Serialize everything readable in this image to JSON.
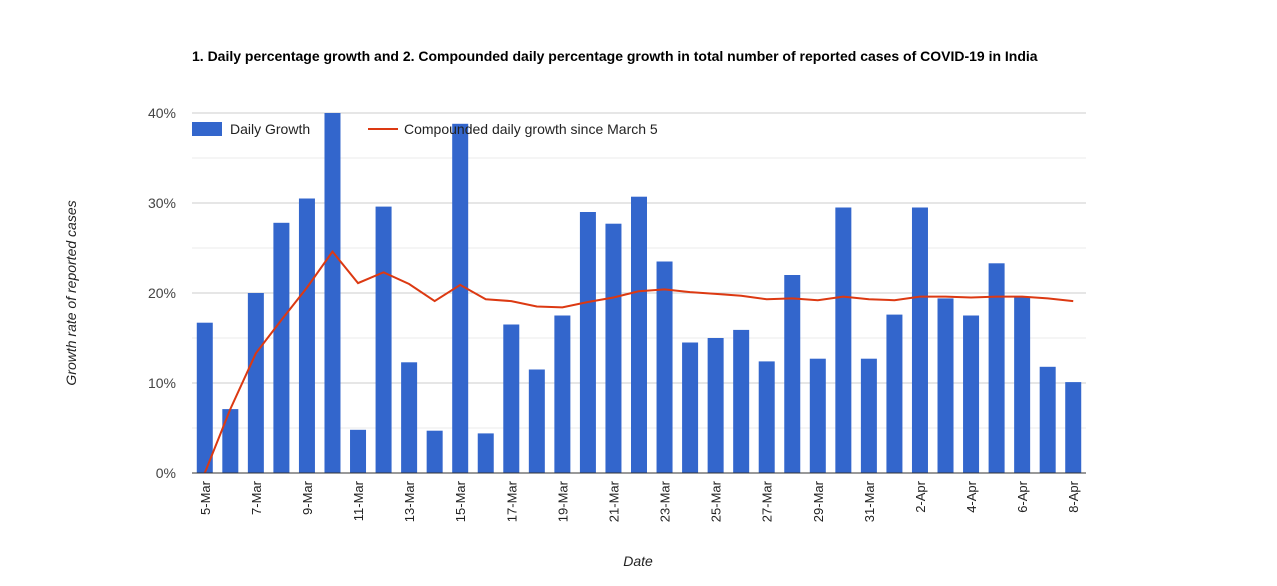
{
  "chart_data": {
    "type": "bar",
    "title": "1. Daily percentage growth and 2. Compounded daily percentage growth in total number of reported cases of COVID-19 in India",
    "xlabel": "Date",
    "ylabel": "Growth rate of reported cases",
    "ylim": [
      0,
      40
    ],
    "y_ticks": [
      "0%",
      "10%",
      "20%",
      "30%",
      "40%"
    ],
    "grid": true,
    "legend_position": "top-left",
    "categories": [
      "5-Mar",
      "6-Mar",
      "7-Mar",
      "8-Mar",
      "9-Mar",
      "10-Mar",
      "11-Mar",
      "12-Mar",
      "13-Mar",
      "14-Mar",
      "15-Mar",
      "16-Mar",
      "17-Mar",
      "18-Mar",
      "19-Mar",
      "20-Mar",
      "21-Mar",
      "22-Mar",
      "23-Mar",
      "24-Mar",
      "25-Mar",
      "26-Mar",
      "27-Mar",
      "28-Mar",
      "29-Mar",
      "30-Mar",
      "31-Mar",
      "1-Apr",
      "2-Apr",
      "3-Apr",
      "4-Apr",
      "5-Apr",
      "6-Apr",
      "7-Apr",
      "8-Apr"
    ],
    "x_tick_labels": [
      "5-Mar",
      "7-Mar",
      "9-Mar",
      "11-Mar",
      "13-Mar",
      "15-Mar",
      "17-Mar",
      "19-Mar",
      "21-Mar",
      "23-Mar",
      "25-Mar",
      "27-Mar",
      "29-Mar",
      "31-Mar",
      "2-Apr",
      "4-Apr",
      "6-Apr",
      "8-Apr"
    ],
    "series": [
      {
        "name": "Daily Growth",
        "type": "bar",
        "color": "#3366cc",
        "values": [
          16.7,
          7.1,
          20.0,
          27.8,
          30.5,
          40.0,
          4.8,
          29.6,
          12.3,
          4.7,
          38.8,
          4.4,
          16.5,
          11.5,
          17.5,
          29.0,
          27.7,
          30.7,
          23.5,
          14.5,
          15.0,
          15.9,
          12.4,
          22.0,
          12.7,
          29.5,
          12.7,
          17.6,
          29.5,
          19.4,
          17.5,
          23.3,
          19.6,
          11.8,
          10.1
        ]
      },
      {
        "name": "Compounded daily growth since March 5",
        "type": "line",
        "color": "#dc3912",
        "values": [
          0.0,
          7.1,
          13.3,
          17.0,
          20.6,
          24.6,
          21.1,
          22.3,
          21.0,
          19.1,
          20.9,
          19.3,
          19.1,
          18.5,
          18.4,
          19.0,
          19.5,
          20.2,
          20.4,
          20.1,
          19.9,
          19.7,
          19.3,
          19.4,
          19.2,
          19.6,
          19.3,
          19.2,
          19.6,
          19.6,
          19.5,
          19.6,
          19.6,
          19.4,
          19.1
        ]
      }
    ]
  }
}
